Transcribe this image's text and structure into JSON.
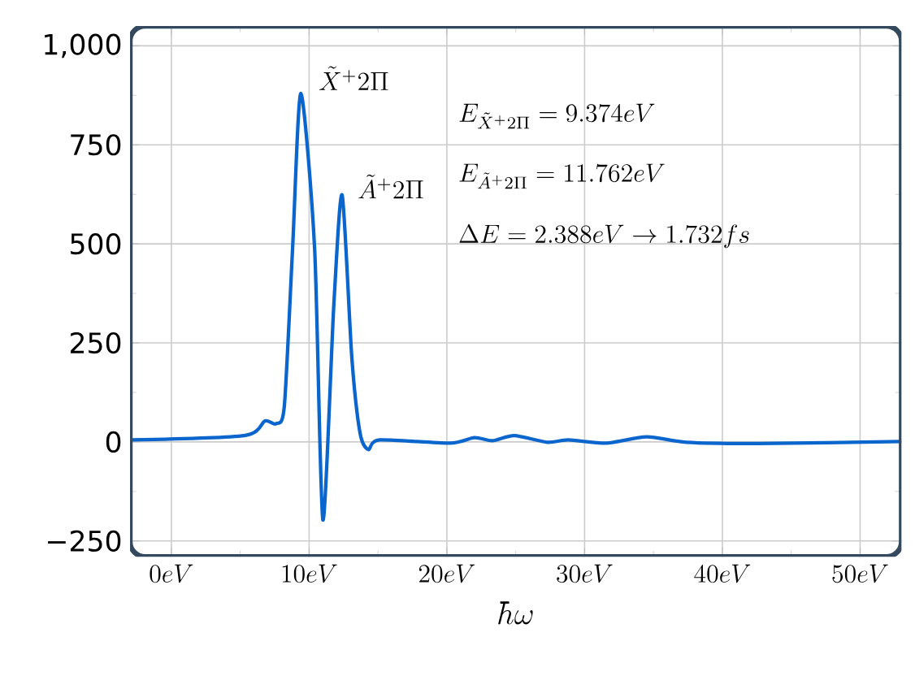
{
  "chart_data": {
    "type": "line",
    "xlabel": "\\hbar\\omega",
    "x": [
      -2.9,
      5.3,
      6.8,
      7.6,
      8.2,
      8.8,
      9.4,
      10.4,
      11.0,
      11.8,
      12.4,
      13.1,
      13.7,
      14.3,
      15.1,
      20.2,
      22.0,
      23.3,
      24.9,
      27.3,
      28.8,
      31.6,
      34.5,
      37.4,
      42.6,
      53
    ],
    "series": [
      {
        "color": "#0a66cc",
        "values": [
          5,
          16,
          53,
          46,
          90,
          488,
          880,
          488,
          -197,
          350,
          623,
          213,
          22,
          -19,
          5,
          -3,
          11,
          3,
          16,
          -1,
          5,
          -3,
          13,
          -1,
          -4,
          1
        ]
      }
    ],
    "xlim": [
      -3,
      53
    ],
    "ylim": [
      -290,
      1050
    ],
    "xticks": [
      {
        "value": 0,
        "label": "0eV"
      },
      {
        "value": 10,
        "label": "10eV"
      },
      {
        "value": 20,
        "label": "20eV"
      },
      {
        "value": 30,
        "label": "30eV"
      },
      {
        "value": 40,
        "label": "40eV"
      },
      {
        "value": 50,
        "label": "50eV"
      }
    ],
    "yticks": [
      {
        "value": -250,
        "label": "−250"
      },
      0,
      250,
      500,
      750,
      {
        "value": 1000,
        "label": "1,000"
      }
    ],
    "grid": true,
    "marker": "none",
    "line_style": "solid",
    "annotations": [
      {
        "text": "\\tilde{X}^{+}2\\Pi",
        "x": 9.4,
        "y": 880
      },
      {
        "text": "\\tilde{A}^{+}2\\Pi",
        "x": 12.4,
        "y": 623
      },
      "E_{\\tilde{X}^{+}2\\Pi}=9.374eV",
      "E_{\\tilde{A}^{+}2\\Pi}=11.762eV",
      "\\Delta E=2.388eV\\rightarrow 1.732fs"
    ]
  }
}
